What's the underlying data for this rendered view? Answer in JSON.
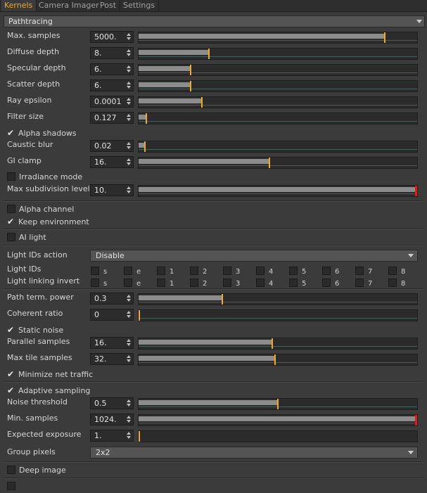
{
  "tabs": [
    {
      "label": "Kernels",
      "active": true
    },
    {
      "label": "Camera Imager"
    },
    {
      "label": "Post"
    },
    {
      "label": "Settings"
    }
  ],
  "section": {
    "title": "Pathtracing"
  },
  "params": {
    "max_samples": {
      "label": "Max. samples",
      "value": "5000.",
      "fraction": 0.885
    },
    "diffuse_depth": {
      "label": "Diffuse depth",
      "value": "8.",
      "fraction": 0.25
    },
    "specular_depth": {
      "label": "Specular depth",
      "value": "6.",
      "fraction": 0.185
    },
    "scatter_depth": {
      "label": "Scatter depth",
      "value": "6.",
      "fraction": 0.185
    },
    "ray_epsilon": {
      "label": "Ray epsilon",
      "value": "0.0001",
      "fraction": 0.225
    },
    "filter_size": {
      "label": "Filter size",
      "value": "0.127",
      "fraction": 0.025
    },
    "alpha_shadows": {
      "label": "Alpha shadows",
      "checked": true
    },
    "caustic_blur": {
      "label": "Caustic blur",
      "value": "0.02",
      "fraction": 0.02
    },
    "gi_clamp": {
      "label": "GI clamp",
      "value": "16.",
      "fraction": 0.47
    },
    "irradiance_mode": {
      "label": "Irradiance mode",
      "checked": false
    },
    "max_subdivision_level": {
      "label": "Max subdivision level",
      "value": "10.",
      "fraction": 1.0
    },
    "alpha_channel": {
      "label": "Alpha channel",
      "checked": false
    },
    "keep_environment": {
      "label": "Keep environment",
      "checked": true
    },
    "ai_light": {
      "label": "AI light",
      "checked": false
    },
    "light_ids_action": {
      "label": "Light IDs action",
      "value": "Disable"
    },
    "light_ids": {
      "label": "Light IDs",
      "items": [
        "s",
        "e",
        "1",
        "2",
        "3",
        "4",
        "5",
        "6",
        "7",
        "8"
      ]
    },
    "light_linking_invert": {
      "label": "Light linking invert",
      "items": [
        "s",
        "e",
        "1",
        "2",
        "3",
        "4",
        "5",
        "6",
        "7",
        "8"
      ]
    },
    "path_term_power": {
      "label": "Path term. power",
      "value": "0.3",
      "fraction": 0.3
    },
    "coherent_ratio": {
      "label": "Coherent ratio",
      "value": "0",
      "fraction": 0.0
    },
    "static_noise": {
      "label": "Static noise",
      "checked": true
    },
    "parallel_samples": {
      "label": "Parallel samples",
      "value": "16.",
      "fraction": 0.48
    },
    "max_tile_samples": {
      "label": "Max tile samples",
      "value": "32.",
      "fraction": 0.49
    },
    "minimize_net_traffic": {
      "label": "Minimize net traffic",
      "checked": true
    },
    "adaptive_sampling": {
      "label": "Adaptive sampling",
      "checked": true
    },
    "noise_threshold": {
      "label": "Noise threshold",
      "value": "0.5",
      "fraction": 0.5
    },
    "min_samples": {
      "label": "Min. samples",
      "value": "1024.",
      "fraction": 1.0
    },
    "expected_exposure": {
      "label": "Expected exposure",
      "value": "1.",
      "fraction": 0.0
    },
    "group_pixels": {
      "label": "Group pixels",
      "value": "2x2"
    },
    "deep_image": {
      "label": "Deep image",
      "checked": false
    }
  }
}
